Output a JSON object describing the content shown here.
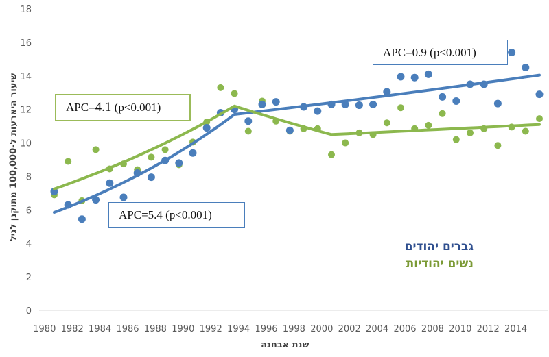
{
  "chart_data": {
    "type": "scatter",
    "xlabel": "שנת אבחנה",
    "ylabel": "שיעור היארעות ל-100,000 מתוקנן לגיל",
    "ylim": [
      0,
      18
    ],
    "yticks": [
      0,
      2,
      4,
      6,
      8,
      10,
      12,
      14,
      16,
      18
    ],
    "xticks": [
      "1980",
      "1982",
      "1984",
      "1986",
      "1988",
      "1990",
      "1992",
      "1994",
      "1996",
      "1998",
      "2000",
      "2002",
      "2004",
      "2006",
      "2008",
      "2010",
      "2012",
      "2014"
    ],
    "grid": false,
    "legend_position": "bottom-right",
    "x": [
      1981,
      1982,
      1983,
      1984,
      1985,
      1986,
      1987,
      1988,
      1989,
      1990,
      1991,
      1992,
      1993,
      1994,
      1995,
      1996,
      1997,
      1998,
      1999,
      2000,
      2001,
      2002,
      2003,
      2004,
      2005,
      2006,
      2007,
      2008,
      2009,
      2010,
      2011,
      2012,
      2013,
      2014,
      2015,
      2016
    ],
    "series": [
      {
        "name": "גברים יהודים",
        "color": "#4a7ebb",
        "legend_color": "#2f4f8f",
        "values": [
          7.1,
          6.3,
          5.45,
          6.6,
          7.6,
          6.75,
          8.2,
          7.95,
          8.95,
          8.8,
          9.4,
          10.9,
          11.8,
          12.0,
          11.3,
          12.3,
          12.45,
          10.75,
          12.15,
          11.9,
          12.3,
          12.3,
          12.25,
          12.3,
          13.05,
          13.95,
          13.9,
          14.1,
          12.75,
          12.5,
          13.5,
          13.5,
          12.35,
          15.4,
          14.5,
          12.9
        ],
        "trend": [
          [
            1981,
            5.85
          ],
          [
            1994,
            11.7
          ],
          [
            2016,
            14.05
          ]
        ]
      },
      {
        "name": "נשים יהודיות",
        "color": "#8cb84e",
        "legend_color": "#7b9a35",
        "values": [
          6.9,
          8.9,
          6.55,
          9.6,
          8.45,
          8.75,
          8.4,
          9.15,
          9.6,
          8.7,
          10.05,
          11.25,
          13.3,
          12.95,
          10.7,
          12.5,
          11.3,
          10.7,
          10.85,
          10.85,
          9.3,
          10.0,
          10.6,
          10.5,
          11.2,
          12.1,
          10.85,
          11.05,
          11.75,
          10.2,
          10.6,
          10.85,
          9.85,
          10.95,
          10.7,
          11.45
        ],
        "trend": [
          [
            1981,
            7.25
          ],
          [
            1994,
            12.2
          ],
          [
            2001,
            10.5
          ],
          [
            2016,
            11.1
          ]
        ]
      }
    ],
    "annotations": [
      {
        "prefix": "APC=",
        "value": "4.1",
        "suffix": " (p<0.001)",
        "color": "#9bbb59"
      },
      {
        "prefix": "APC=",
        "value": "5.4",
        "suffix": " (p<0.001)",
        "color": "#4a7ebb"
      },
      {
        "prefix": "APC=",
        "value": "0.9",
        "suffix": " (p<0.001)",
        "color": "#4a7ebb"
      }
    ]
  }
}
